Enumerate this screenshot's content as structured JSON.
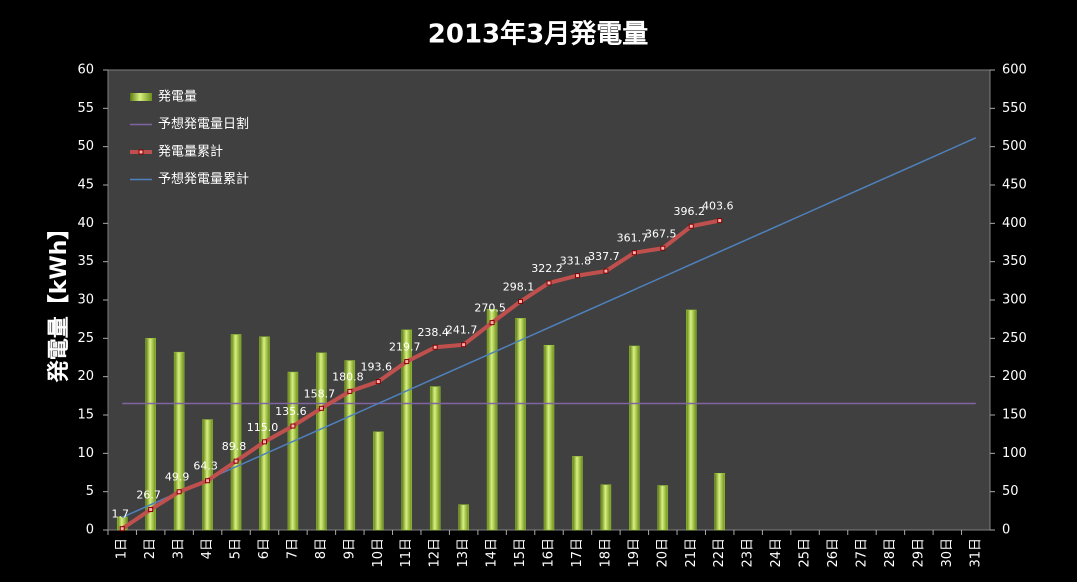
{
  "chart_data": {
    "type": "bar_line",
    "title": "2013年3月発電量",
    "y_label": "発電量【kWh】",
    "categories": [
      "1日",
      "2日",
      "3日",
      "4日",
      "5日",
      "6日",
      "7日",
      "8日",
      "9日",
      "10日",
      "11日",
      "12日",
      "13日",
      "14日",
      "15日",
      "16日",
      "17日",
      "18日",
      "19日",
      "20日",
      "21日",
      "22日",
      "23日",
      "24日",
      "25日",
      "26日",
      "27日",
      "28日",
      "29日",
      "30日",
      "31日"
    ],
    "ylim": [
      0,
      60
    ],
    "yticks": [
      0,
      5,
      10,
      15,
      20,
      25,
      30,
      35,
      40,
      45,
      50,
      55,
      60
    ],
    "y2lim": [
      0,
      600
    ],
    "y2ticks": [
      0,
      50,
      100,
      150,
      200,
      250,
      300,
      350,
      400,
      450,
      500,
      550,
      600
    ],
    "legend": "upper left",
    "series": [
      {
        "name": "発電量",
        "kind": "bar",
        "color": "#9acd32",
        "values": [
          1.7,
          25.0,
          23.2,
          14.4,
          25.5,
          25.2,
          20.6,
          23.1,
          22.1,
          12.8,
          26.1,
          18.7,
          3.3,
          28.8,
          27.6,
          24.1,
          9.6,
          5.9,
          24.0,
          5.8,
          28.7,
          7.4,
          null,
          null,
          null,
          null,
          null,
          null,
          null,
          null,
          null
        ]
      },
      {
        "name": "予想発電量日割",
        "kind": "line",
        "color": "#8064a2",
        "values": [
          16.5,
          16.5,
          16.5,
          16.5,
          16.5,
          16.5,
          16.5,
          16.5,
          16.5,
          16.5,
          16.5,
          16.5,
          16.5,
          16.5,
          16.5,
          16.5,
          16.5,
          16.5,
          16.5,
          16.5,
          16.5,
          16.5,
          16.5,
          16.5,
          16.5,
          16.5,
          16.5,
          16.5,
          16.5,
          16.5,
          16.5
        ]
      },
      {
        "name": "発電量累計",
        "kind": "line",
        "axis": "y2",
        "color": "#c0504d",
        "markers": true,
        "values": [
          1.7,
          26.7,
          49.9,
          64.3,
          89.8,
          115.0,
          135.6,
          158.7,
          180.8,
          193.6,
          219.7,
          238.4,
          241.7,
          270.5,
          298.1,
          322.2,
          331.8,
          337.7,
          361.7,
          367.5,
          396.2,
          403.6,
          null,
          null,
          null,
          null,
          null,
          null,
          null,
          null,
          null
        ],
        "value_labels": [
          "1.7",
          "26.7",
          "49.9",
          "64.3",
          "89.8",
          "115.0",
          "135.6",
          "158.7",
          "180.8",
          "193.6",
          "219.7",
          "238.4",
          "241.7",
          "270.5",
          "298.1",
          "322.2",
          "331.8",
          "337.7",
          "361.7",
          "367.5",
          "396.2",
          "403.6",
          null,
          null,
          null,
          null,
          null,
          null,
          null,
          null,
          null
        ]
      },
      {
        "name": "予想発電量累計",
        "kind": "line",
        "axis": "y2",
        "color": "#4f81bd",
        "values": [
          16.5,
          33,
          49.5,
          66,
          82.5,
          99,
          115.5,
          132,
          148.5,
          165,
          181.5,
          198,
          214.5,
          231,
          247.5,
          264,
          280.5,
          297,
          313.5,
          330,
          346.5,
          363,
          379.5,
          396,
          412.5,
          429,
          445.5,
          462,
          478.5,
          495,
          511.5
        ]
      }
    ]
  }
}
